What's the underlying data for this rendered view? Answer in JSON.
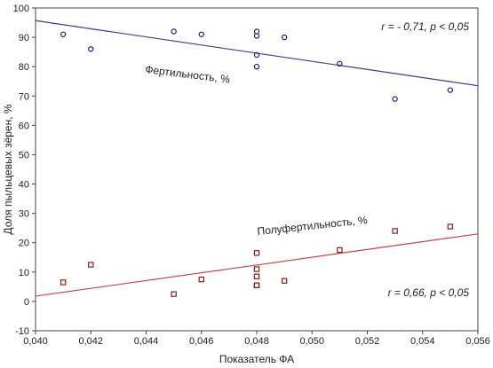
{
  "chart_data": {
    "type": "scatter",
    "title": "",
    "xlabel": "Показатель ФА",
    "ylabel": "Доля пыльцевых зёрен, %",
    "xlim": [
      0.04,
      0.056
    ],
    "ylim": [
      -10,
      100
    ],
    "xticks": [
      0.04,
      0.042,
      0.044,
      0.046,
      0.048,
      0.05,
      0.052,
      0.054,
      0.056
    ],
    "xtick_labels": [
      "0,040",
      "0,042",
      "0,044",
      "0,046",
      "0,048",
      "0,050",
      "0,052",
      "0,054",
      "0,056"
    ],
    "yticks": [
      -10,
      0,
      10,
      20,
      30,
      40,
      50,
      60,
      70,
      80,
      90,
      100
    ],
    "ytick_labels": [
      "-10",
      "0",
      "10",
      "20",
      "30",
      "40",
      "50",
      "60",
      "70",
      "80",
      "90",
      "100"
    ],
    "grid": false,
    "series": [
      {
        "name": "Фертильность, %",
        "marker": "circle",
        "color": "#1c1f8a",
        "line_color": "#3a3d9a",
        "x": [
          0.041,
          0.042,
          0.045,
          0.046,
          0.048,
          0.048,
          0.048,
          0.048,
          0.049,
          0.051,
          0.053,
          0.055
        ],
        "y": [
          91,
          86,
          92,
          91,
          92,
          90.5,
          84,
          80,
          90,
          81,
          69,
          72
        ],
        "fit": {
          "x": [
            0.04,
            0.056
          ],
          "y": [
            95.7,
            73.5
          ]
        },
        "annotation": "r = - 0,71, p < 0,05"
      },
      {
        "name": "Полуфертильность, %",
        "marker": "square",
        "color": "#8b1a1a",
        "line_color": "#cc4444",
        "x": [
          0.041,
          0.042,
          0.045,
          0.046,
          0.048,
          0.048,
          0.048,
          0.048,
          0.048,
          0.049,
          0.051,
          0.053,
          0.055
        ],
        "y": [
          6.5,
          12.5,
          2.5,
          7.5,
          16.5,
          11,
          8.5,
          5.5,
          5.5,
          7,
          17.5,
          24,
          25.5
        ],
        "fit": {
          "x": [
            0.04,
            0.056
          ],
          "y": [
            1.8,
            23
          ]
        },
        "annotation": "r = 0,66, p < 0,05"
      }
    ]
  }
}
